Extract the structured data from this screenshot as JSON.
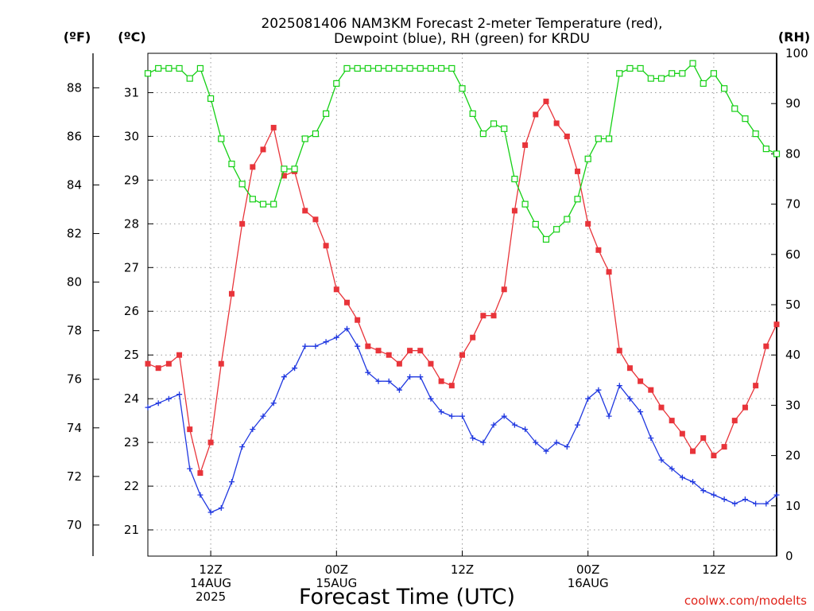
{
  "header": {
    "title_line1": "2025081406 NAM3KM Forecast 2-meter Temperature (red),",
    "title_line2": "Dewpoint (blue), RH (green) for KRDU"
  },
  "footer": {
    "credit": "coolwx.com/modelts"
  },
  "colors": {
    "temperature": "#e8343a",
    "dewpoint": "#2038e0",
    "rh": "#14d014",
    "grid": "#9a9a9a",
    "credit": "#e0241b"
  },
  "chart_data": {
    "type": "line",
    "title": "2025081406 NAM3KM Forecast 2-meter Temperature (red), Dewpoint (blue), RH (green) for KRDU",
    "xlabel": "Forecast Time (UTC)",
    "axes": {
      "fahrenheit": {
        "unit_label": "(ºF)",
        "ticks": [
          "70",
          "72",
          "74",
          "76",
          "78",
          "80",
          "82",
          "84",
          "86",
          "88"
        ]
      },
      "celsius": {
        "unit_label": "(ºC)",
        "ticks": [
          "21",
          "22",
          "23",
          "24",
          "25",
          "26",
          "27",
          "28",
          "29",
          "30",
          "31"
        ],
        "ylim": [
          20.4,
          31.9
        ]
      },
      "rh": {
        "unit_label": "(RH)",
        "ticks": [
          "0",
          "10",
          "20",
          "30",
          "40",
          "50",
          "60",
          "70",
          "80",
          "90",
          "100"
        ],
        "ylim": [
          0,
          100
        ]
      }
    },
    "x": {
      "start_hour": 6,
      "end_hour": 66,
      "step_hours": 1
    },
    "x_ticks": [
      {
        "hour": 12,
        "lines": [
          "12Z",
          "14AUG",
          "2025"
        ]
      },
      {
        "hour": 24,
        "lines": [
          "00Z",
          "15AUG"
        ]
      },
      {
        "hour": 36,
        "lines": [
          "12Z"
        ]
      },
      {
        "hour": 48,
        "lines": [
          "00Z",
          "16AUG"
        ]
      },
      {
        "hour": 60,
        "lines": [
          "12Z"
        ]
      }
    ],
    "grid": true,
    "legend": "none",
    "series": [
      {
        "name": "Temperature",
        "axis": "celsius",
        "marker": "filled-square",
        "values": [
          24.8,
          24.7,
          24.8,
          25.0,
          23.3,
          22.3,
          23.0,
          24.8,
          26.4,
          28.0,
          29.3,
          29.7,
          30.2,
          29.1,
          29.2,
          28.3,
          28.1,
          27.5,
          26.5,
          26.2,
          25.8,
          25.2,
          25.1,
          25.0,
          24.8,
          25.1,
          25.1,
          24.8,
          24.4,
          24.3,
          25.0,
          25.4,
          25.9,
          25.9,
          26.5,
          28.3,
          29.8,
          30.5,
          30.8,
          30.3,
          30.0,
          29.2,
          28.0,
          27.4,
          26.9,
          25.1,
          24.7,
          24.4,
          24.2,
          23.8,
          23.5,
          23.2,
          22.8,
          23.1,
          22.7,
          22.9,
          23.5,
          23.8,
          24.3,
          25.2,
          25.7
        ]
      },
      {
        "name": "Dewpoint",
        "axis": "celsius",
        "marker": "plus",
        "values": [
          23.8,
          23.9,
          24.0,
          24.1,
          22.4,
          21.8,
          21.4,
          21.5,
          22.1,
          22.9,
          23.3,
          23.6,
          23.9,
          24.5,
          24.7,
          25.2,
          25.2,
          25.3,
          25.4,
          25.6,
          25.2,
          24.6,
          24.4,
          24.4,
          24.2,
          24.5,
          24.5,
          24.0,
          23.7,
          23.6,
          23.6,
          23.1,
          23.0,
          23.4,
          23.6,
          23.4,
          23.3,
          23.0,
          22.8,
          23.0,
          22.9,
          23.4,
          24.0,
          24.2,
          23.6,
          24.3,
          24.0,
          23.7,
          23.1,
          22.6,
          22.4,
          22.2,
          22.1,
          21.9,
          21.8,
          21.7,
          21.6,
          21.7,
          21.6,
          21.6,
          21.8
        ]
      },
      {
        "name": "RH",
        "axis": "rh",
        "marker": "open-square",
        "values": [
          96,
          97,
          97,
          97,
          95,
          97,
          91,
          83,
          78,
          74,
          71,
          70,
          70,
          77,
          77,
          83,
          84,
          88,
          94,
          97,
          97,
          97,
          97,
          97,
          97,
          97,
          97,
          97,
          97,
          97,
          93,
          88,
          84,
          86,
          85,
          75,
          70,
          66,
          63,
          65,
          67,
          71,
          79,
          83,
          83,
          96,
          97,
          97,
          95,
          95,
          96,
          96,
          98,
          94,
          96,
          93,
          89,
          87,
          84,
          81,
          80
        ]
      }
    ]
  }
}
